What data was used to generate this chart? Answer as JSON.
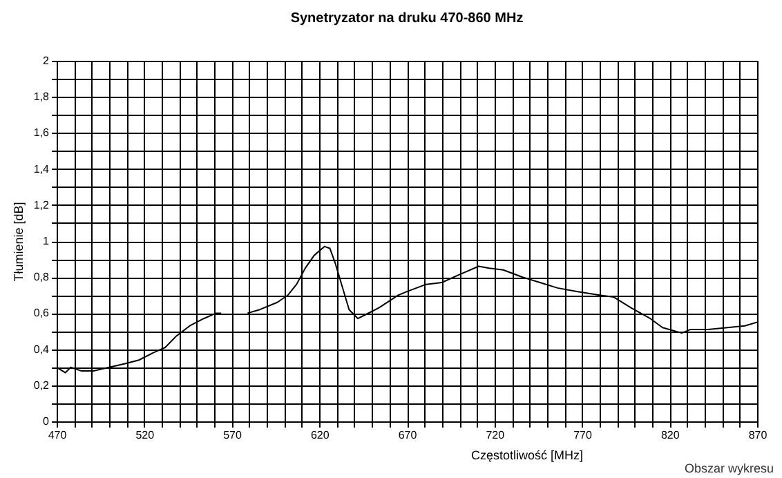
{
  "chart_data": {
    "type": "line",
    "title": "Synetryzator na druku 470-860 MHz",
    "xlabel": "Częstotliwość [MHz]",
    "ylabel": "Tłumienie [dB]",
    "annotations": [
      "Obszar wykresu"
    ],
    "x": [
      470,
      475,
      478,
      484,
      491,
      500,
      509,
      517,
      525,
      532,
      538,
      546,
      554,
      561,
      564,
      570,
      579,
      586,
      596,
      602,
      607,
      612,
      617,
      623,
      626,
      629,
      633,
      637,
      642,
      646,
      654,
      665,
      670,
      681,
      690,
      699,
      711,
      717,
      725,
      736,
      746,
      756,
      767,
      780,
      788,
      798,
      809,
      816,
      827,
      832,
      842,
      853,
      863,
      870
    ],
    "series": [
      {
        "color": "#000000",
        "values": [
          0.3,
          0.27,
          0.3,
          0.28,
          0.28,
          0.3,
          0.32,
          0.34,
          0.38,
          0.41,
          0.47,
          0.53,
          0.57,
          0.6,
          0.6,
          null,
          0.6,
          0.62,
          0.66,
          0.7,
          0.76,
          0.85,
          0.92,
          0.97,
          0.96,
          0.88,
          0.75,
          0.62,
          0.57,
          0.59,
          0.63,
          0.7,
          0.72,
          0.76,
          0.77,
          0.81,
          0.86,
          0.85,
          0.84,
          0.8,
          0.77,
          0.74,
          0.72,
          0.7,
          0.69,
          0.63,
          0.57,
          0.52,
          0.49,
          0.51,
          0.51,
          0.52,
          0.53,
          0.55
        ]
      }
    ],
    "xlim": [
      470,
      870
    ],
    "xticks": [
      470,
      {
        "value": 480,
        "label": null
      },
      {
        "value": 490,
        "label": null
      },
      {
        "value": 500,
        "label": null
      },
      {
        "value": 510,
        "label": null
      },
      520,
      {
        "value": 530,
        "label": null
      },
      {
        "value": 540,
        "label": null
      },
      {
        "value": 550,
        "label": null
      },
      {
        "value": 560,
        "label": null
      },
      570,
      {
        "value": 580,
        "label": null
      },
      {
        "value": 590,
        "label": null
      },
      {
        "value": 600,
        "label": null
      },
      {
        "value": 610,
        "label": null
      },
      620,
      {
        "value": 630,
        "label": null
      },
      {
        "value": 640,
        "label": null
      },
      {
        "value": 650,
        "label": null
      },
      {
        "value": 660,
        "label": null
      },
      670,
      {
        "value": 680,
        "label": null
      },
      {
        "value": 690,
        "label": null
      },
      {
        "value": 700,
        "label": null
      },
      {
        "value": 710,
        "label": null
      },
      720,
      {
        "value": 730,
        "label": null
      },
      {
        "value": 740,
        "label": null
      },
      {
        "value": 750,
        "label": null
      },
      {
        "value": 760,
        "label": null
      },
      770,
      {
        "value": 780,
        "label": null
      },
      {
        "value": 790,
        "label": null
      },
      {
        "value": 800,
        "label": null
      },
      {
        "value": 810,
        "label": null
      },
      820,
      {
        "value": 830,
        "label": null
      },
      {
        "value": 840,
        "label": null
      },
      {
        "value": 850,
        "label": null
      },
      {
        "value": 860,
        "label": null
      },
      870
    ],
    "ylim": [
      0,
      2
    ],
    "yticks": [
      0,
      {
        "value": 0.1,
        "label": null
      },
      {
        "value": 0.2,
        "label": "0,2"
      },
      {
        "value": 0.3,
        "label": null
      },
      {
        "value": 0.4,
        "label": "0,4"
      },
      {
        "value": 0.5,
        "label": null
      },
      {
        "value": 0.6,
        "label": "0,6"
      },
      {
        "value": 0.7,
        "label": null
      },
      {
        "value": 0.8,
        "label": "0,8"
      },
      {
        "value": 0.9,
        "label": null
      },
      1,
      {
        "value": 1.1,
        "label": null
      },
      {
        "value": 1.2,
        "label": "1,2"
      },
      {
        "value": 1.3,
        "label": null
      },
      {
        "value": 1.4,
        "label": "1,4"
      },
      {
        "value": 1.5,
        "label": null
      },
      {
        "value": 1.6,
        "label": "1,6"
      },
      {
        "value": 1.7,
        "label": null
      },
      {
        "value": 1.8,
        "label": "1,8"
      },
      {
        "value": 1.9,
        "label": null
      },
      2
    ],
    "grid": true,
    "marker": "none",
    "line_style": "solid"
  }
}
